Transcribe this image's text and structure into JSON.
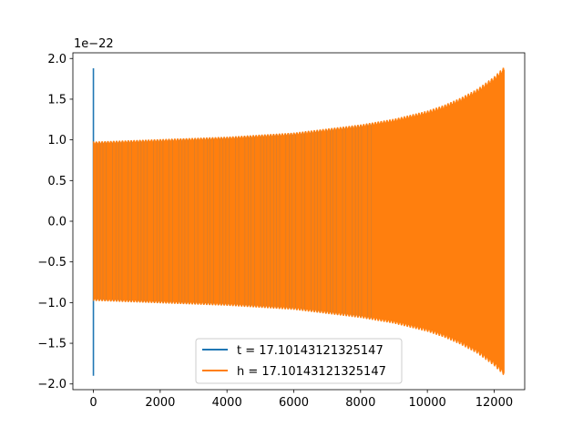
{
  "chart_data": {
    "type": "line",
    "title": "",
    "xlabel": "",
    "ylabel": "",
    "xlim": [
      -615,
      12915
    ],
    "ylim": [
      -2.07,
      2.07
    ],
    "y_offset_label": "1e−22",
    "x_ticks": [
      0,
      2000,
      4000,
      6000,
      8000,
      10000,
      12000
    ],
    "y_ticks": [
      -2.0,
      -1.5,
      -1.0,
      -0.5,
      0.0,
      0.5,
      1.0,
      1.5,
      2.0
    ],
    "y_tick_labels": [
      "−2.0",
      "−1.5",
      "−1.0",
      "−0.5",
      "0.0",
      "0.5",
      "1.0",
      "1.5",
      "2.0"
    ],
    "grid": false,
    "legend_position": "lower center",
    "series": [
      {
        "name": "t = 17.10143121325147",
        "color": "#1f77b4",
        "kind": "spike",
        "x": [
          0,
          0
        ],
        "y": [
          -1.9,
          1.88
        ]
      },
      {
        "name": "h = 17.10143121325147",
        "color": "#ff7f0e",
        "kind": "chirp",
        "x_start": 0,
        "x_end": 12300,
        "envelope_x": [
          0,
          2000,
          4000,
          6000,
          8000,
          9000,
          10000,
          10500,
          11000,
          11500,
          12000,
          12300
        ],
        "envelope_y": [
          0.98,
          1.01,
          1.04,
          1.09,
          1.19,
          1.26,
          1.36,
          1.43,
          1.52,
          1.63,
          1.78,
          1.9
        ]
      }
    ]
  }
}
